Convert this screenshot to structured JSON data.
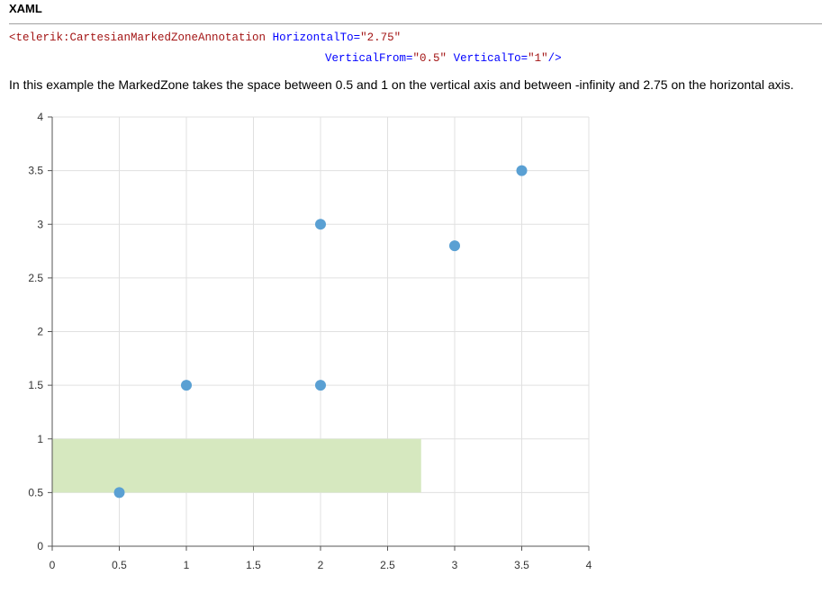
{
  "heading": "XAML",
  "code": {
    "line1": {
      "tag": "<telerik:CartesianMarkedZoneAnnotation",
      "attr1": "HorizontalTo=",
      "val1": "\"2.75\""
    },
    "line2": {
      "attr1": "VerticalFrom=",
      "val1": "\"0.5\"",
      "attr2": "VerticalTo=",
      "val2": "\"1\"",
      "close": "/>"
    }
  },
  "description": "In this example the MarkedZone takes the space between 0.5 and 1 on the vertical axis and between -infinity and 2.75 on the horizontal axis.",
  "chart_data": {
    "type": "scatter",
    "points": [
      {
        "x": 0.5,
        "y": 0.5
      },
      {
        "x": 1,
        "y": 1.5
      },
      {
        "x": 2,
        "y": 1.5
      },
      {
        "x": 2,
        "y": 3
      },
      {
        "x": 3,
        "y": 2.8
      },
      {
        "x": 3.5,
        "y": 3.5
      }
    ],
    "xlim": [
      0,
      4
    ],
    "ylim": [
      0,
      4
    ],
    "x_ticks": [
      "0",
      "0.5",
      "1",
      "1.5",
      "2",
      "2.5",
      "3",
      "3.5",
      "4"
    ],
    "y_ticks": [
      "0",
      "0.5",
      "1",
      "1.5",
      "2",
      "2.5",
      "3",
      "3.5",
      "4"
    ],
    "grid": true,
    "marked_zone": {
      "horizontal_to": 2.75,
      "vertical_from": 0.5,
      "vertical_to": 1
    },
    "colors": {
      "point": "#5aa0d3",
      "zone": "#d6e8bf",
      "grid": "#e0e0e0"
    }
  }
}
